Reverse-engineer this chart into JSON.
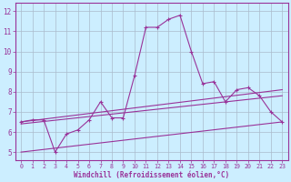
{
  "xlabel": "Windchill (Refroidissement éolien,°C)",
  "bg_color": "#cceeff",
  "grid_color": "#aabbcc",
  "line_color": "#993399",
  "x_ticks": [
    0,
    1,
    2,
    3,
    4,
    5,
    6,
    7,
    8,
    9,
    10,
    11,
    12,
    13,
    14,
    15,
    16,
    17,
    18,
    19,
    20,
    21,
    22,
    23
  ],
  "y_ticks": [
    5,
    6,
    7,
    8,
    9,
    10,
    11,
    12
  ],
  "ylim": [
    4.6,
    12.4
  ],
  "xlim": [
    -0.5,
    23.5
  ],
  "series1_x": [
    0,
    1,
    2,
    3,
    4,
    5,
    6,
    7,
    8,
    9,
    10,
    11,
    12,
    13,
    14,
    15,
    16,
    17,
    18,
    19,
    20,
    21,
    22,
    23
  ],
  "series1_y": [
    6.5,
    6.6,
    6.6,
    5.0,
    5.9,
    6.1,
    6.6,
    7.5,
    6.7,
    6.7,
    8.8,
    11.2,
    11.2,
    11.6,
    11.8,
    10.0,
    8.4,
    8.5,
    7.5,
    8.1,
    8.2,
    7.8,
    7.0,
    6.5
  ],
  "series2_x": [
    0,
    23
  ],
  "series2_y": [
    6.5,
    8.1
  ],
  "series3_x": [
    0,
    23
  ],
  "series3_y": [
    6.4,
    7.8
  ],
  "series4_x": [
    0,
    23
  ],
  "series4_y": [
    5.0,
    6.5
  ]
}
